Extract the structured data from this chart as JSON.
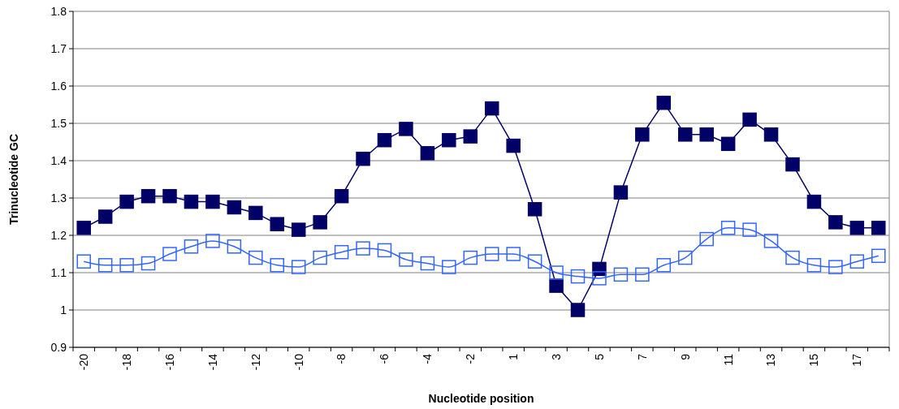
{
  "chart_data": {
    "type": "line",
    "xlabel": "Nucleotide position",
    "ylabel": "Trinucleotide GC",
    "categories": [
      "-20",
      null,
      "-18",
      null,
      "-16",
      null,
      "-14",
      null,
      "-12",
      null,
      "-10",
      null,
      "-8",
      null,
      "-6",
      null,
      "-4",
      null,
      "-2",
      null,
      "1",
      null,
      "3",
      null,
      "5",
      null,
      "7",
      null,
      "9",
      null,
      "11",
      null,
      "13",
      null,
      "15",
      null,
      "17",
      null
    ],
    "series": [
      {
        "color": "#000066",
        "values": [
          1.22,
          1.25,
          1.29,
          1.305,
          1.305,
          1.29,
          1.29,
          1.275,
          1.26,
          1.23,
          1.215,
          1.235,
          1.305,
          1.405,
          1.455,
          1.485,
          1.42,
          1.455,
          1.465,
          1.54,
          1.44,
          1.27,
          1.065,
          1.0,
          1.11,
          1.315,
          1.47,
          1.555,
          1.47,
          1.47,
          1.445,
          1.51,
          1.47,
          1.39,
          1.29,
          1.235,
          1.22,
          1.22
        ]
      },
      {
        "color": "#3366ff",
        "values": [
          1.13,
          1.12,
          1.12,
          1.125,
          1.15,
          1.17,
          1.185,
          1.17,
          1.14,
          1.12,
          1.115,
          1.14,
          1.155,
          1.165,
          1.16,
          1.135,
          1.125,
          1.115,
          1.14,
          1.15,
          1.15,
          1.13,
          1.1,
          1.09,
          1.085,
          1.095,
          1.095,
          1.12,
          1.14,
          1.19,
          1.22,
          1.215,
          1.185,
          1.14,
          1.12,
          1.115,
          1.13,
          1.145
        ]
      }
    ],
    "ylim": [
      0.9,
      1.8
    ],
    "yticks": [
      0.9,
      1,
      1.1,
      1.2,
      1.3,
      1.4,
      1.5,
      1.6,
      1.7,
      1.8
    ],
    "grid": "y",
    "marker": "square"
  }
}
